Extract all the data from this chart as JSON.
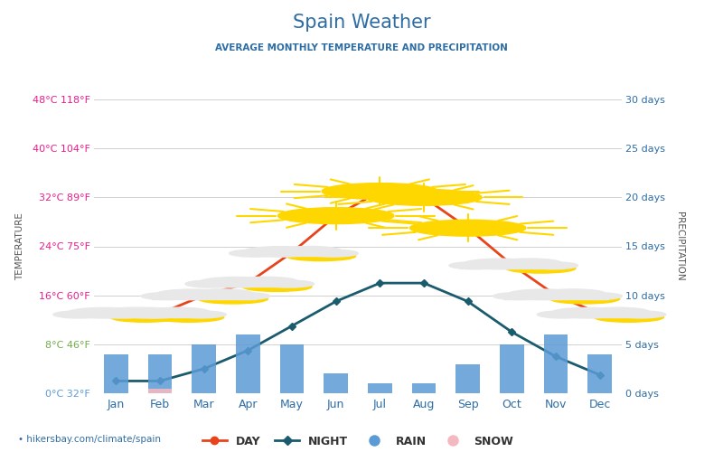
{
  "title": "Spain Weather",
  "subtitle": "AVERAGE MONTHLY TEMPERATURE AND PRECIPITATION",
  "months": [
    "Jan",
    "Feb",
    "Mar",
    "Apr",
    "May",
    "Jun",
    "Jul",
    "Aug",
    "Sep",
    "Oct",
    "Nov",
    "Dec"
  ],
  "day_temps": [
    13,
    13,
    16,
    18,
    23,
    29,
    33,
    32,
    27,
    21,
    16,
    13
  ],
  "night_temps": [
    2,
    2,
    4,
    7,
    11,
    15,
    18,
    18,
    15,
    10,
    6,
    3
  ],
  "rain_days": [
    4,
    4,
    5,
    6,
    5,
    2,
    1,
    1,
    3,
    5,
    6,
    4
  ],
  "snow_days": [
    0,
    0.5,
    0,
    0,
    0,
    0,
    0,
    0,
    0,
    0,
    0,
    0
  ],
  "left_yticks_c": [
    0,
    8,
    16,
    24,
    32,
    40,
    48
  ],
  "left_yticks_f": [
    32,
    46,
    60,
    75,
    89,
    104,
    118
  ],
  "right_yticks": [
    0,
    5,
    10,
    15,
    20,
    25,
    30
  ],
  "temp_min": 0,
  "temp_max": 48,
  "precip_min": 0,
  "precip_max": 30,
  "day_color": "#e8431a",
  "night_color": "#1a5c6e",
  "bar_color": "#5b9bd5",
  "snow_color": "#f4b8c1",
  "bg_color": "#ffffff",
  "grid_color": "#d0d0d0",
  "title_color": "#2e6da4",
  "subtitle_color": "#2e6da4",
  "temp_axis_color": "#e91e8c",
  "temp_axis_color_0": "#5b9bd5",
  "temp_axis_color_8": "#70ad47",
  "watermark": "hikersbay.com/climate/spain",
  "legend_day": "DAY",
  "legend_night": "NIGHT",
  "legend_rain": "RAIN",
  "legend_snow": "SNOW",
  "sun_months": [
    5,
    6,
    7,
    8
  ],
  "cloud_months": [
    0,
    1,
    2,
    3,
    4,
    9,
    10,
    11
  ]
}
